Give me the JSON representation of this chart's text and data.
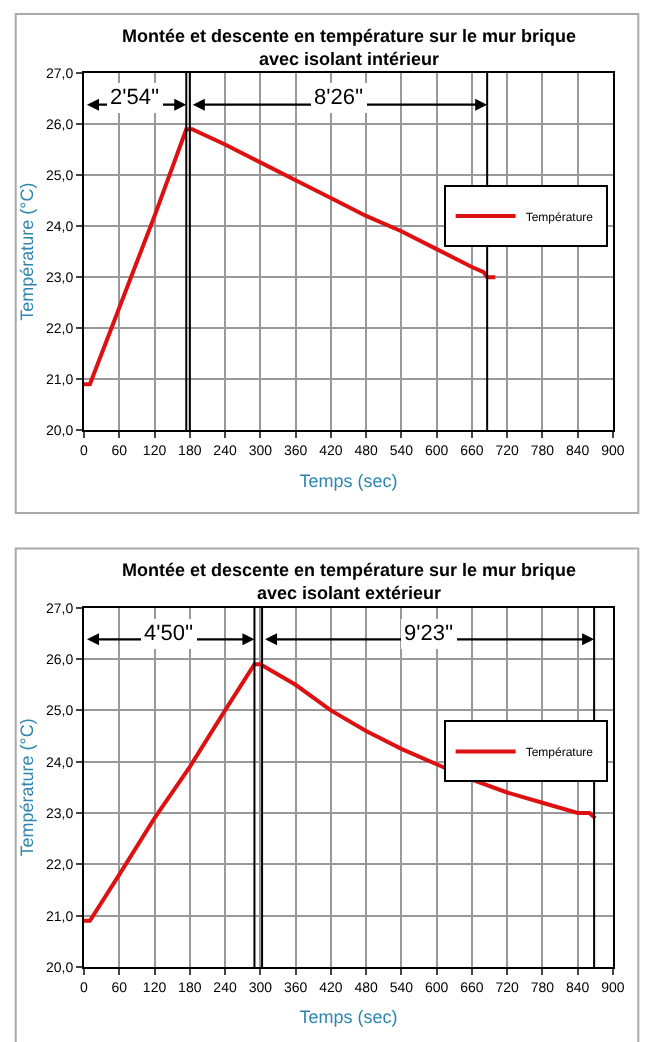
{
  "chart_data": [
    {
      "type": "line",
      "title": "Montée et descente en température sur le mur brique\navec isolant intérieur",
      "xlabel": "Temps (sec)",
      "ylabel": "Température (°C)",
      "x": [
        0,
        10,
        60,
        120,
        174,
        184,
        240,
        300,
        360,
        420,
        480,
        540,
        600,
        660,
        680,
        686,
        700
      ],
      "series": [
        {
          "name": "Température",
          "color": "#dd1111",
          "values": [
            20.9,
            20.9,
            22.4,
            24.2,
            25.9,
            25.9,
            25.6,
            25.25,
            24.9,
            24.55,
            24.2,
            23.9,
            23.55,
            23.2,
            23.1,
            23.0,
            23.0
          ]
        }
      ],
      "xlim": [
        0,
        900
      ],
      "xticks": [
        0,
        60,
        120,
        180,
        240,
        300,
        360,
        420,
        480,
        540,
        600,
        660,
        720,
        780,
        840,
        900
      ],
      "ylim": [
        20,
        27
      ],
      "yticks": [
        {
          "value": 20,
          "label": "20,0"
        },
        {
          "value": 21,
          "label": "21,0"
        },
        {
          "value": 22,
          "label": "22,0"
        },
        {
          "value": 23,
          "label": "23,0"
        },
        {
          "value": 24,
          "label": "24,0"
        },
        {
          "value": 25,
          "label": "25,0"
        },
        {
          "value": 26,
          "label": "26,0"
        },
        {
          "value": 27,
          "label": "27,0"
        }
      ],
      "grid": true,
      "legend": "right",
      "ref_lines": [
        {
          "axis": "x",
          "value": 174,
          "color": "#000000"
        },
        {
          "axis": "x",
          "value": 180,
          "color": "#000000"
        },
        {
          "axis": "x",
          "value": 686,
          "color": "#000000"
        }
      ],
      "annotations": [
        "2'54''",
        "8'26''"
      ]
    },
    {
      "type": "line",
      "title": "Montée et descente en température sur le mur brique\navec isolant extérieur",
      "xlabel": "Temps (sec)",
      "ylabel": "Température (°C)",
      "x": [
        0,
        10,
        60,
        120,
        180,
        240,
        290,
        300,
        360,
        420,
        480,
        540,
        600,
        660,
        720,
        780,
        840,
        860,
        870
      ],
      "series": [
        {
          "name": "Température",
          "color": "#dd1111",
          "values": [
            20.9,
            20.9,
            21.8,
            22.9,
            23.9,
            25.0,
            25.9,
            25.9,
            25.5,
            25.0,
            24.6,
            24.25,
            23.95,
            23.65,
            23.4,
            23.2,
            23.0,
            23.0,
            22.9
          ]
        }
      ],
      "xlim": [
        0,
        900
      ],
      "xticks": [
        0,
        60,
        120,
        180,
        240,
        300,
        360,
        420,
        480,
        540,
        600,
        660,
        720,
        780,
        840,
        900
      ],
      "ylim": [
        20,
        27
      ],
      "yticks": [
        {
          "value": 20,
          "label": "20,0"
        },
        {
          "value": 21,
          "label": "21,0"
        },
        {
          "value": 22,
          "label": "22,0"
        },
        {
          "value": 23,
          "label": "23,0"
        },
        {
          "value": 24,
          "label": "24,0"
        },
        {
          "value": 25,
          "label": "25,0"
        },
        {
          "value": 26,
          "label": "26,0"
        },
        {
          "value": 27,
          "label": "27,0"
        }
      ],
      "grid": true,
      "legend": "right",
      "ref_lines": [
        {
          "axis": "x",
          "value": 290,
          "color": "#000000"
        },
        {
          "axis": "x",
          "value": 303,
          "color": "#000000"
        },
        {
          "axis": "x",
          "value": 868,
          "color": "#000000"
        }
      ],
      "annotations": [
        "4'50''",
        "9'23''"
      ]
    }
  ]
}
